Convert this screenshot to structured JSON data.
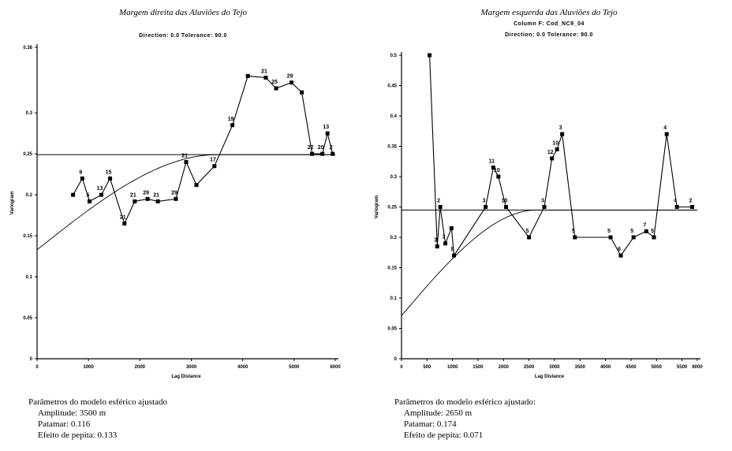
{
  "charts": [
    {
      "title": "Margem direita das Aluviões do Tejo",
      "subtitle_lines": [
        "Direction: 0.0   Tolerance: 90.0"
      ],
      "params": {
        "heading": "Parâmetros do modelo esférico ajustado",
        "amplitude": "Amplitude: 3500 m",
        "patamar": "Patamar: 0.116",
        "pepita": "Efeito de pepita: 0.133"
      }
    },
    {
      "title": "Margem esquerda das Aluviões do Tejo",
      "subtitle_lines": [
        "Column F: Cod_NC9_04",
        "Direction: 0.0   Tolerance: 90.0"
      ],
      "params": {
        "heading": "Parâmetros do modelo esférico ajustado:",
        "amplitude": "Amplitude: 2650 m",
        "patamar": "Patamar: 0.174",
        "pepita": "Efeito de pepita: 0.071"
      }
    }
  ],
  "chart_data": [
    {
      "type": "line",
      "title": "Margem direita das Aluviões do Tejo",
      "xlabel": "Lag Distance",
      "ylabel": "Variogram",
      "xlim": [
        0,
        5800
      ],
      "ylim": [
        0,
        0.38
      ],
      "xticks": [
        0,
        1000,
        2000,
        3000,
        4000,
        5000,
        6000
      ],
      "yticks": [
        0,
        0.05,
        0.1,
        0.15,
        0.2,
        0.25,
        0.3,
        0.38
      ],
      "sill_line": 0.249,
      "series": [
        {
          "points": [
            {
              "x": 700,
              "y": 0.2,
              "label": ""
            },
            {
              "x": 880,
              "y": 0.22,
              "label": "9"
            },
            {
              "x": 1020,
              "y": 0.192,
              "label": "5"
            },
            {
              "x": 1250,
              "y": 0.2,
              "label": "13"
            },
            {
              "x": 1420,
              "y": 0.22,
              "label": "15"
            },
            {
              "x": 1700,
              "y": 0.165,
              "label": "21"
            },
            {
              "x": 1900,
              "y": 0.192,
              "label": "21"
            },
            {
              "x": 2150,
              "y": 0.195,
              "label": "29"
            },
            {
              "x": 2350,
              "y": 0.192,
              "label": "21"
            },
            {
              "x": 2700,
              "y": 0.195,
              "label": "29"
            },
            {
              "x": 2900,
              "y": 0.24,
              "label": "21"
            },
            {
              "x": 3100,
              "y": 0.212,
              "label": ""
            },
            {
              "x": 3450,
              "y": 0.235,
              "label": "17"
            },
            {
              "x": 3800,
              "y": 0.285,
              "label": "19"
            },
            {
              "x": 4100,
              "y": 0.345,
              "label": ""
            },
            {
              "x": 4450,
              "y": 0.343,
              "label": "21"
            },
            {
              "x": 4650,
              "y": 0.33,
              "label": "25"
            },
            {
              "x": 4950,
              "y": 0.337,
              "label": "29"
            },
            {
              "x": 5150,
              "y": 0.325,
              "label": ""
            },
            {
              "x": 5350,
              "y": 0.25,
              "label": "22"
            },
            {
              "x": 5550,
              "y": 0.25,
              "label": "20"
            },
            {
              "x": 5650,
              "y": 0.275,
              "label": "13"
            },
            {
              "x": 5750,
              "y": 0.25,
              "label": "2"
            }
          ]
        }
      ],
      "model": {
        "nugget": 0.133,
        "sill": 0.116,
        "range": 3500
      }
    },
    {
      "type": "line",
      "title": "Margem esquerda das Aluviões do Tejo",
      "xlabel": "Lag Distance",
      "ylabel": "Variogram",
      "xlim": [
        0,
        5800
      ],
      "ylim": [
        0,
        0.5
      ],
      "xticks": [
        0,
        500,
        1000,
        1500,
        2000,
        2500,
        3000,
        3500,
        4000,
        4500,
        5000,
        5500,
        6000
      ],
      "yticks": [
        0,
        0.05,
        0.1,
        0.15,
        0.2,
        0.25,
        0.3,
        0.35,
        0.4,
        0.45,
        0.5
      ],
      "sill_line": 0.245,
      "series": [
        {
          "points": [
            {
              "x": 550,
              "y": 0.5,
              "label": ""
            },
            {
              "x": 700,
              "y": 0.185,
              "label": "3"
            },
            {
              "x": 760,
              "y": 0.25,
              "label": "2"
            },
            {
              "x": 860,
              "y": 0.19,
              "label": "3"
            },
            {
              "x": 980,
              "y": 0.215,
              "label": ""
            },
            {
              "x": 1030,
              "y": 0.17,
              "label": "8"
            },
            {
              "x": 1650,
              "y": 0.25,
              "label": "3"
            },
            {
              "x": 1800,
              "y": 0.315,
              "label": "11"
            },
            {
              "x": 1900,
              "y": 0.3,
              "label": "10"
            },
            {
              "x": 2050,
              "y": 0.25,
              "label": "10"
            },
            {
              "x": 2500,
              "y": 0.2,
              "label": "5"
            },
            {
              "x": 2800,
              "y": 0.25,
              "label": "3"
            },
            {
              "x": 2950,
              "y": 0.33,
              "label": "12"
            },
            {
              "x": 3050,
              "y": 0.345,
              "label": "10"
            },
            {
              "x": 3150,
              "y": 0.37,
              "label": "3"
            },
            {
              "x": 3400,
              "y": 0.2,
              "label": "5"
            },
            {
              "x": 4100,
              "y": 0.2,
              "label": "5"
            },
            {
              "x": 4300,
              "y": 0.17,
              "label": "6"
            },
            {
              "x": 4550,
              "y": 0.2,
              "label": "5"
            },
            {
              "x": 4800,
              "y": 0.21,
              "label": "7"
            },
            {
              "x": 4950,
              "y": 0.2,
              "label": "5"
            },
            {
              "x": 5200,
              "y": 0.37,
              "label": "4"
            },
            {
              "x": 5400,
              "y": 0.25,
              "label": "4"
            },
            {
              "x": 5700,
              "y": 0.25,
              "label": "2"
            }
          ]
        }
      ],
      "model": {
        "nugget": 0.071,
        "sill": 0.174,
        "range": 2650
      }
    }
  ]
}
